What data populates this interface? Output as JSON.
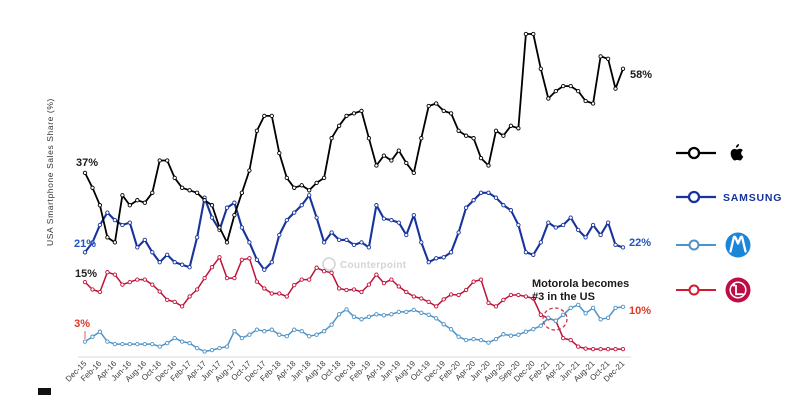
{
  "chart_data": {
    "type": "line",
    "title": "",
    "xlabel": "",
    "ylabel": "USA Smartphone Sales Share (%)",
    "x_unit": "month (monthly points, ticks every 2 months)",
    "ylim": [
      0,
      70
    ],
    "grid": false,
    "legend_position": "right",
    "x_tick_labels": [
      "Dec-15",
      "Feb-16",
      "Apr-16",
      "Jun-16",
      "Aug-16",
      "Oct-16",
      "Dec-16",
      "Feb-17",
      "Apr-17",
      "Jun-17",
      "Aug-17",
      "Oct-17",
      "Dec-17",
      "Feb-18",
      "Apr-18",
      "Jun-18",
      "Aug-18",
      "Oct-18",
      "Dec-18",
      "Feb-19",
      "Apr-19",
      "Jun-19",
      "Aug-19",
      "Oct-19",
      "Dec-19",
      "Feb-20",
      "Apr-20",
      "Jun-20",
      "Aug-20",
      "Sep-20",
      "Dec-20",
      "Feb-21",
      "Apr-21",
      "Jun-21",
      "Aug-21",
      "Oct-21",
      "Dec-21"
    ],
    "series": [
      {
        "id": "apple",
        "name": "Apple",
        "legend_icon": "apple-logo",
        "color": "#000000",
        "label_color": "#1a1a1a",
        "start_label": "37%",
        "end_label": "58%",
        "values": [
          37,
          34,
          30.5,
          24,
          23,
          32.5,
          30.5,
          31.5,
          31,
          33,
          39.5,
          39.5,
          36,
          34,
          33.5,
          33,
          31.5,
          30.5,
          26,
          23,
          28.5,
          33,
          37.5,
          45.5,
          48.5,
          48.5,
          41,
          36,
          34,
          34.5,
          33.5,
          35,
          36,
          44,
          46.5,
          48.5,
          49,
          49.5,
          44,
          38.5,
          40.5,
          39.5,
          41.5,
          39,
          37,
          44,
          50.5,
          51,
          49.5,
          49,
          45.5,
          44.5,
          44,
          40,
          38.5,
          45.5,
          44.5,
          46.5,
          46,
          65,
          65,
          58,
          52,
          53.5,
          54.5,
          54.5,
          53.5,
          51.5,
          51,
          60.5,
          60,
          54,
          58
        ]
      },
      {
        "id": "samsung",
        "name": "Samsung",
        "legend_icon": "samsung-wordmark",
        "legend_text": "SAMSUNG",
        "color": "#17349c",
        "label_color": "#2353c4",
        "start_label": "21%",
        "end_label": "22%",
        "values": [
          21,
          23,
          26.5,
          29,
          27.5,
          26.5,
          27,
          22,
          23.5,
          21,
          19,
          20.5,
          19,
          18.5,
          18,
          24,
          32,
          28,
          25.5,
          30,
          31,
          26,
          23,
          19.5,
          17.5,
          19,
          24.5,
          27.5,
          29,
          30.5,
          32.5,
          28,
          23,
          25,
          23.5,
          23.5,
          22.5,
          23,
          22,
          30.5,
          27.8,
          27.5,
          27,
          24.5,
          28.5,
          23,
          19,
          19.8,
          20,
          21,
          25,
          30,
          31.5,
          33,
          33,
          32,
          30.5,
          29.5,
          26.5,
          21,
          20.5,
          23,
          27,
          26,
          26.5,
          28,
          25.5,
          24,
          26.5,
          24.5,
          27,
          22.5,
          22
        ]
      },
      {
        "id": "motorola",
        "name": "Motorola",
        "legend_icon": "motorola-logo",
        "color": "#4e93c8",
        "label_color": "#e0372a",
        "start_label": "3%",
        "end_label": "10%",
        "values": [
          3,
          4,
          5,
          3,
          2.5,
          2.5,
          2.5,
          2.5,
          2.5,
          2.5,
          2,
          2.7,
          3.7,
          3,
          2.7,
          1.7,
          1,
          1.3,
          1.7,
          2,
          5.1,
          3.7,
          4.4,
          5.4,
          5.1,
          5.4,
          4.4,
          4.1,
          5.4,
          5.1,
          4.1,
          4.4,
          5.1,
          6.4,
          8.5,
          9.5,
          8,
          7.5,
          8,
          8.5,
          8.3,
          8.5,
          9,
          9,
          9.4,
          8.8,
          8.4,
          7.7,
          6.5,
          5.5,
          4,
          3.3,
          3.5,
          3.3,
          2.8,
          3.5,
          4.5,
          4.2,
          4.4,
          5,
          5.5,
          6.2,
          7.8,
          7.2,
          8.4,
          9.8,
          10.4,
          8.7,
          9.8,
          7.5,
          7.8,
          9.8,
          10
        ]
      },
      {
        "id": "lg",
        "name": "LG",
        "legend_icon": "lg-logo",
        "color": "#bf1238",
        "label_color": "#222222",
        "start_label": "15%",
        "end_label": "",
        "values": [
          15,
          13.5,
          13,
          17,
          16.5,
          14.5,
          15,
          15.5,
          15.5,
          14.5,
          13.1,
          11.4,
          11,
          10.1,
          12.1,
          13.5,
          15.8,
          18,
          20,
          15.8,
          15.8,
          19.5,
          19.8,
          15.1,
          13.7,
          12.7,
          12.7,
          12.1,
          14.4,
          15.5,
          15.5,
          17.9,
          17.2,
          16.9,
          13.7,
          13.4,
          13.5,
          13,
          14.5,
          16.5,
          14.8,
          15.5,
          14.1,
          13,
          12.1,
          11.7,
          11,
          10.1,
          11.5,
          12.5,
          12.4,
          13.4,
          15.1,
          15.5,
          10.8,
          10.1,
          11.4,
          12.4,
          12.4,
          12.1,
          11.7,
          8.4,
          7.7,
          7.2,
          3.7,
          3.3,
          2,
          1.6,
          1.5,
          1.5,
          1.5,
          1.5,
          1.5
        ]
      }
    ],
    "annotation": {
      "line1": "Motorola becomes",
      "line2": "#3 in the US"
    },
    "watermark": "Counterpoint"
  },
  "colors": {
    "samsung_brand": "#17349c",
    "motorola_logo_circle": "#1b85d8",
    "lg_logo_circle": "#bd0d45",
    "lg_legend_line": "#d11a2d",
    "axis_line": "#d8d8d8",
    "annotation_circle": "#cb3349",
    "watermark": "#d2d5d9"
  }
}
